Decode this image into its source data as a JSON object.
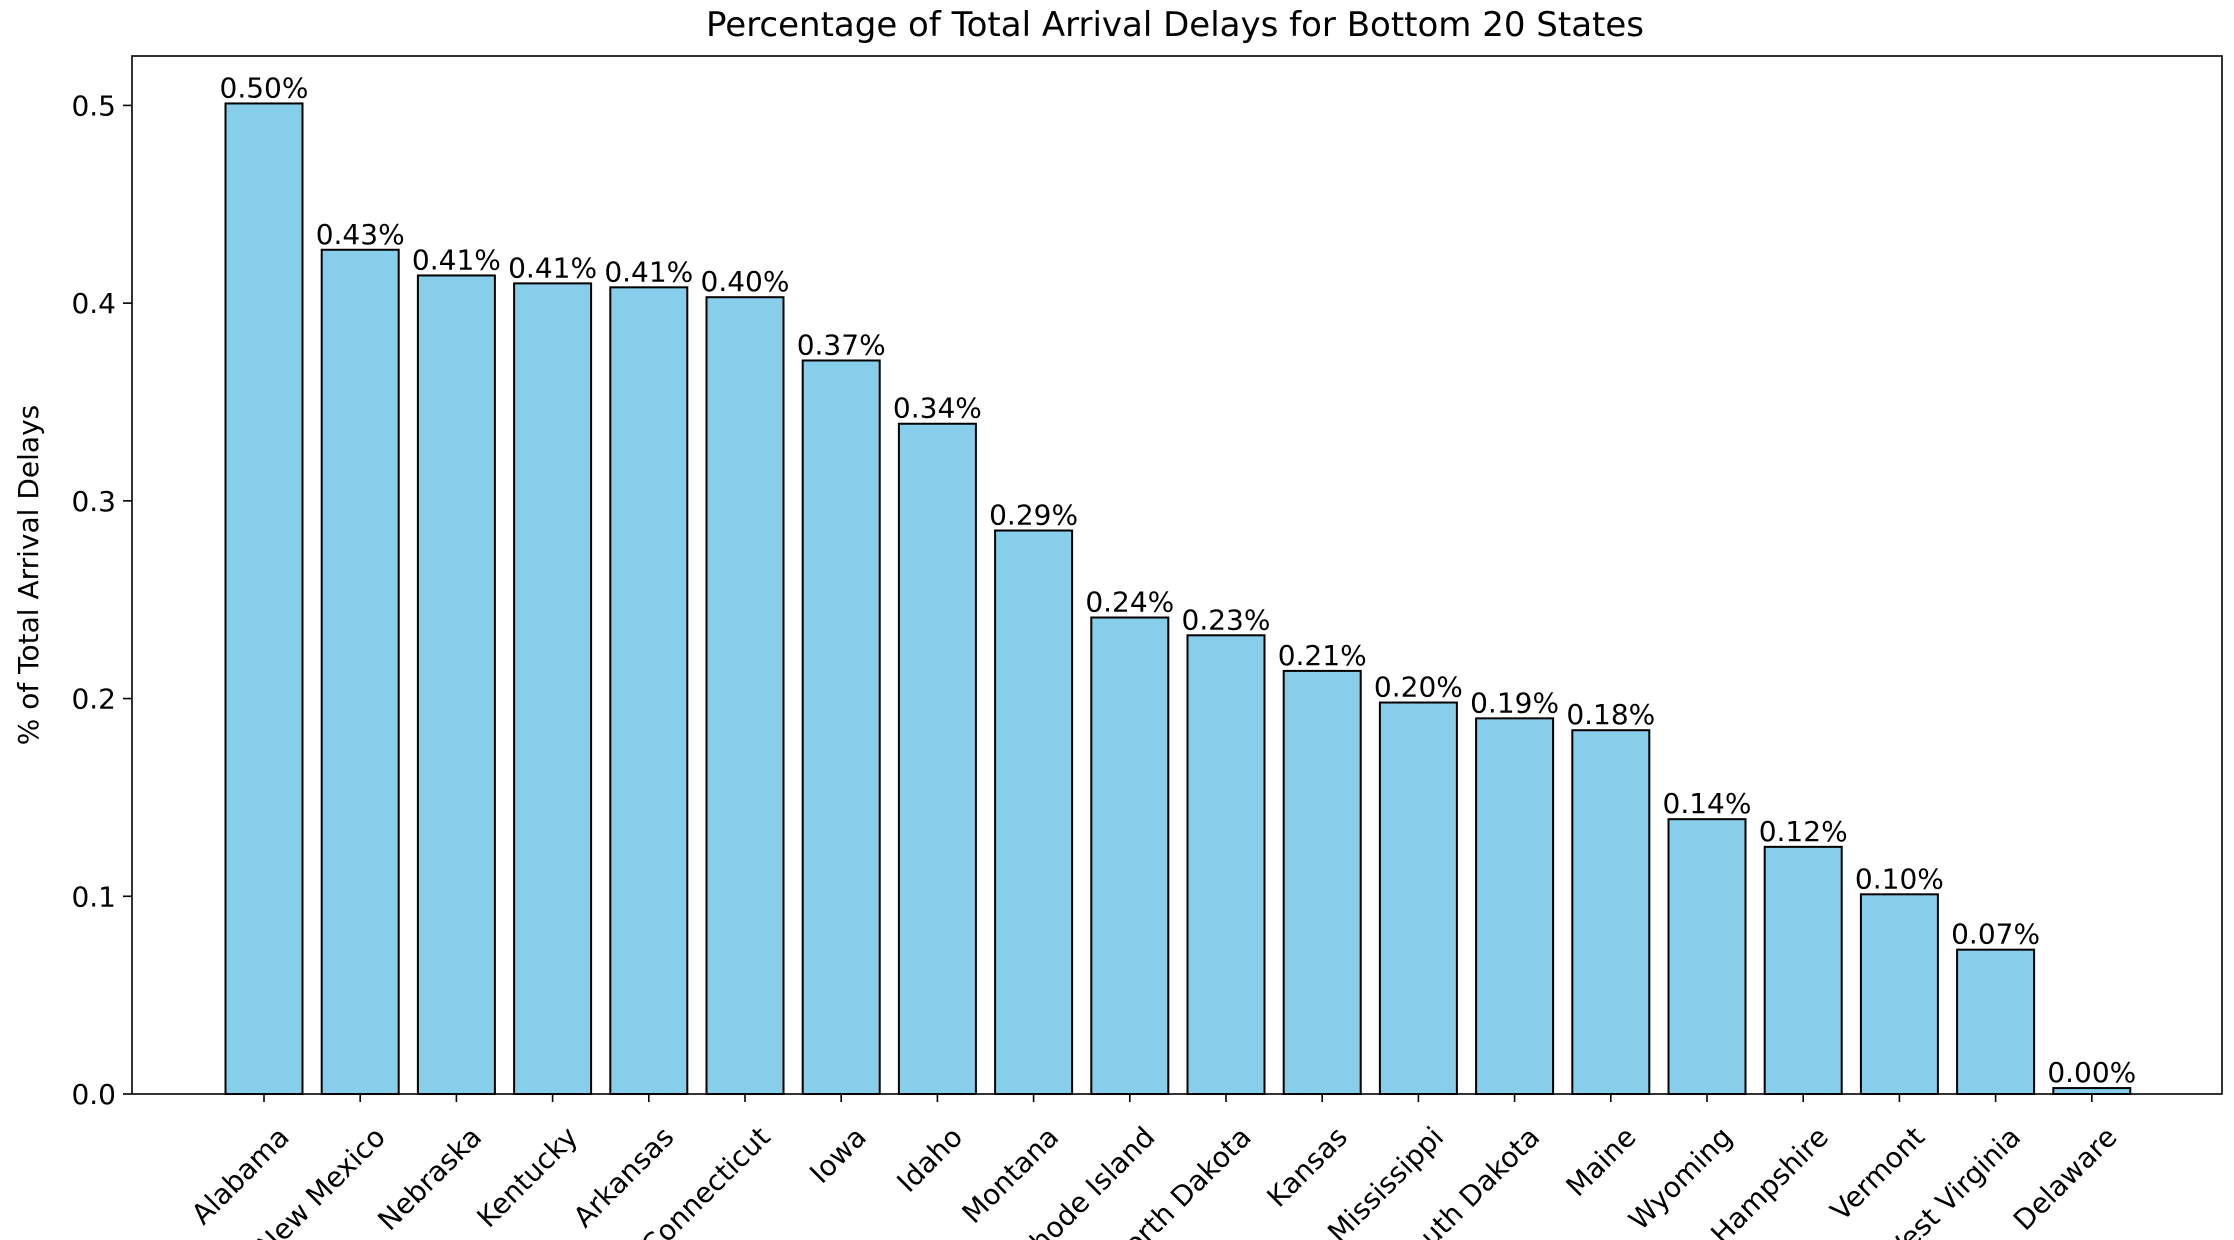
{
  "chart_data": {
    "type": "bar",
    "title": "Percentage of Total Arrival Delays for Bottom 20 States",
    "xlabel": "",
    "ylabel": "% of Total Arrival Delays",
    "ylim": [
      0,
      0.525
    ],
    "yticks": [
      "0.0",
      "0.1",
      "0.2",
      "0.3",
      "0.4",
      "0.5"
    ],
    "grid": false,
    "bar_color": "#87ceeb",
    "edge_color": "#000000",
    "categories": [
      "Alabama",
      "New Mexico",
      "Nebraska",
      "Kentucky",
      "Arkansas",
      "Connecticut",
      "Iowa",
      "Idaho",
      "Montana",
      "Rhode Island",
      "North Dakota",
      "Kansas",
      "Mississippi",
      "South Dakota",
      "Maine",
      "Wyoming",
      "New Hampshire",
      "Vermont",
      "West Virginia",
      "Delaware"
    ],
    "values": [
      0.501,
      0.427,
      0.414,
      0.41,
      0.408,
      0.403,
      0.371,
      0.339,
      0.285,
      0.241,
      0.232,
      0.214,
      0.198,
      0.19,
      0.184,
      0.139,
      0.125,
      0.101,
      0.073,
      0.003
    ],
    "labels": [
      "0.50%",
      "0.43%",
      "0.41%",
      "0.41%",
      "0.41%",
      "0.40%",
      "0.37%",
      "0.34%",
      "0.29%",
      "0.24%",
      "0.23%",
      "0.21%",
      "0.20%",
      "0.19%",
      "0.18%",
      "0.14%",
      "0.12%",
      "0.10%",
      "0.07%",
      "0.00%"
    ]
  }
}
